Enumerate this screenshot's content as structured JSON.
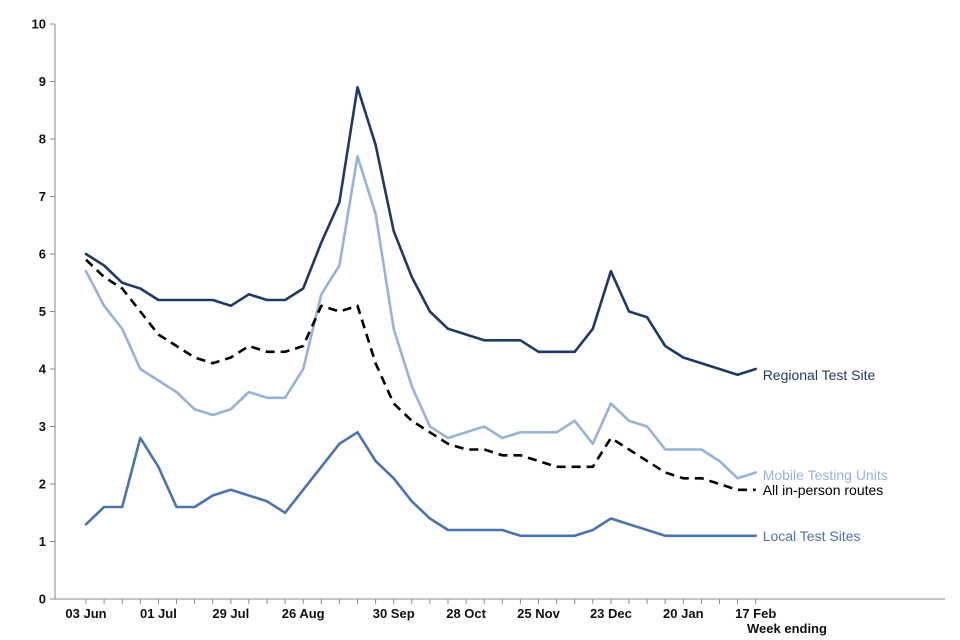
{
  "chart_data": {
    "type": "line",
    "xlabel": "Week ending",
    "ylabel": "",
    "ylim": [
      0,
      10
    ],
    "yticks": [
      0,
      1,
      2,
      3,
      4,
      5,
      6,
      7,
      8,
      9,
      10
    ],
    "x": [
      "03 Jun",
      "10 Jun",
      "17 Jun",
      "24 Jun",
      "01 Jul",
      "08 Jul",
      "15 Jul",
      "22 Jul",
      "29 Jul",
      "05 Aug",
      "12 Aug",
      "19 Aug",
      "26 Aug",
      "02 Sep",
      "09 Sep",
      "16 Sep",
      "23 Sep",
      "30 Sep",
      "07 Oct",
      "14 Oct",
      "21 Oct",
      "28 Oct",
      "04 Nov",
      "11 Nov",
      "18 Nov",
      "25 Nov",
      "02 Dec",
      "09 Dec",
      "16 Dec",
      "23 Dec",
      "30 Dec",
      "06 Jan",
      "13 Jan",
      "20 Jan",
      "27 Jan",
      "03 Feb",
      "10 Feb",
      "17 Feb"
    ],
    "xtick_labels": [
      "03 Jun",
      "01 Jul",
      "29 Jul",
      "26 Aug",
      "30 Sep",
      "28 Oct",
      "25 Nov",
      "23 Dec",
      "20 Jan",
      "17 Feb"
    ],
    "series": [
      {
        "name": "Regional Test Site",
        "color": "#1f3a64",
        "dash": "solid",
        "values": [
          6.0,
          5.8,
          5.5,
          5.4,
          5.2,
          5.2,
          5.2,
          5.2,
          5.1,
          5.3,
          5.2,
          5.2,
          5.4,
          6.2,
          6.9,
          8.9,
          7.9,
          6.4,
          5.6,
          5.0,
          4.7,
          4.6,
          4.5,
          4.5,
          4.5,
          4.3,
          4.3,
          4.3,
          4.7,
          5.7,
          5.0,
          4.9,
          4.4,
          4.2,
          4.1,
          4.0,
          3.9,
          4.0
        ]
      },
      {
        "name": "Mobile Testing Units",
        "color": "#97b3d6",
        "dash": "solid",
        "values": [
          5.7,
          5.1,
          4.7,
          4.0,
          3.8,
          3.6,
          3.3,
          3.2,
          3.3,
          3.6,
          3.5,
          3.5,
          4.0,
          5.3,
          5.8,
          7.7,
          6.7,
          4.7,
          3.7,
          3.0,
          2.8,
          2.9,
          3.0,
          2.8,
          2.9,
          2.9,
          2.9,
          3.1,
          2.7,
          3.4,
          3.1,
          3.0,
          2.6,
          2.6,
          2.6,
          2.4,
          2.1,
          2.2
        ]
      },
      {
        "name": "All in-person routes",
        "color": "#000000",
        "dash": "dashed",
        "values": [
          5.9,
          5.6,
          5.4,
          5.0,
          4.6,
          4.4,
          4.2,
          4.1,
          4.2,
          4.4,
          4.3,
          4.3,
          4.4,
          5.1,
          5.0,
          5.1,
          4.1,
          3.4,
          3.1,
          2.9,
          2.7,
          2.6,
          2.6,
          2.5,
          2.5,
          2.4,
          2.3,
          2.3,
          2.3,
          2.8,
          2.6,
          2.4,
          2.2,
          2.1,
          2.1,
          2.0,
          1.9,
          1.9
        ]
      },
      {
        "name": "Local Test Sites",
        "color": "#4a74ae",
        "dash": "solid",
        "values": [
          1.3,
          1.6,
          1.6,
          2.8,
          2.3,
          1.6,
          1.6,
          1.8,
          1.9,
          1.8,
          1.7,
          1.5,
          1.9,
          2.3,
          2.7,
          2.9,
          2.4,
          2.1,
          1.7,
          1.4,
          1.2,
          1.2,
          1.2,
          1.2,
          1.1,
          1.1,
          1.1,
          1.1,
          1.2,
          1.4,
          1.3,
          1.2,
          1.1,
          1.1,
          1.1,
          1.1,
          1.1,
          1.1
        ]
      }
    ],
    "grid": false,
    "legend": "inline labels at line ends (right)"
  }
}
